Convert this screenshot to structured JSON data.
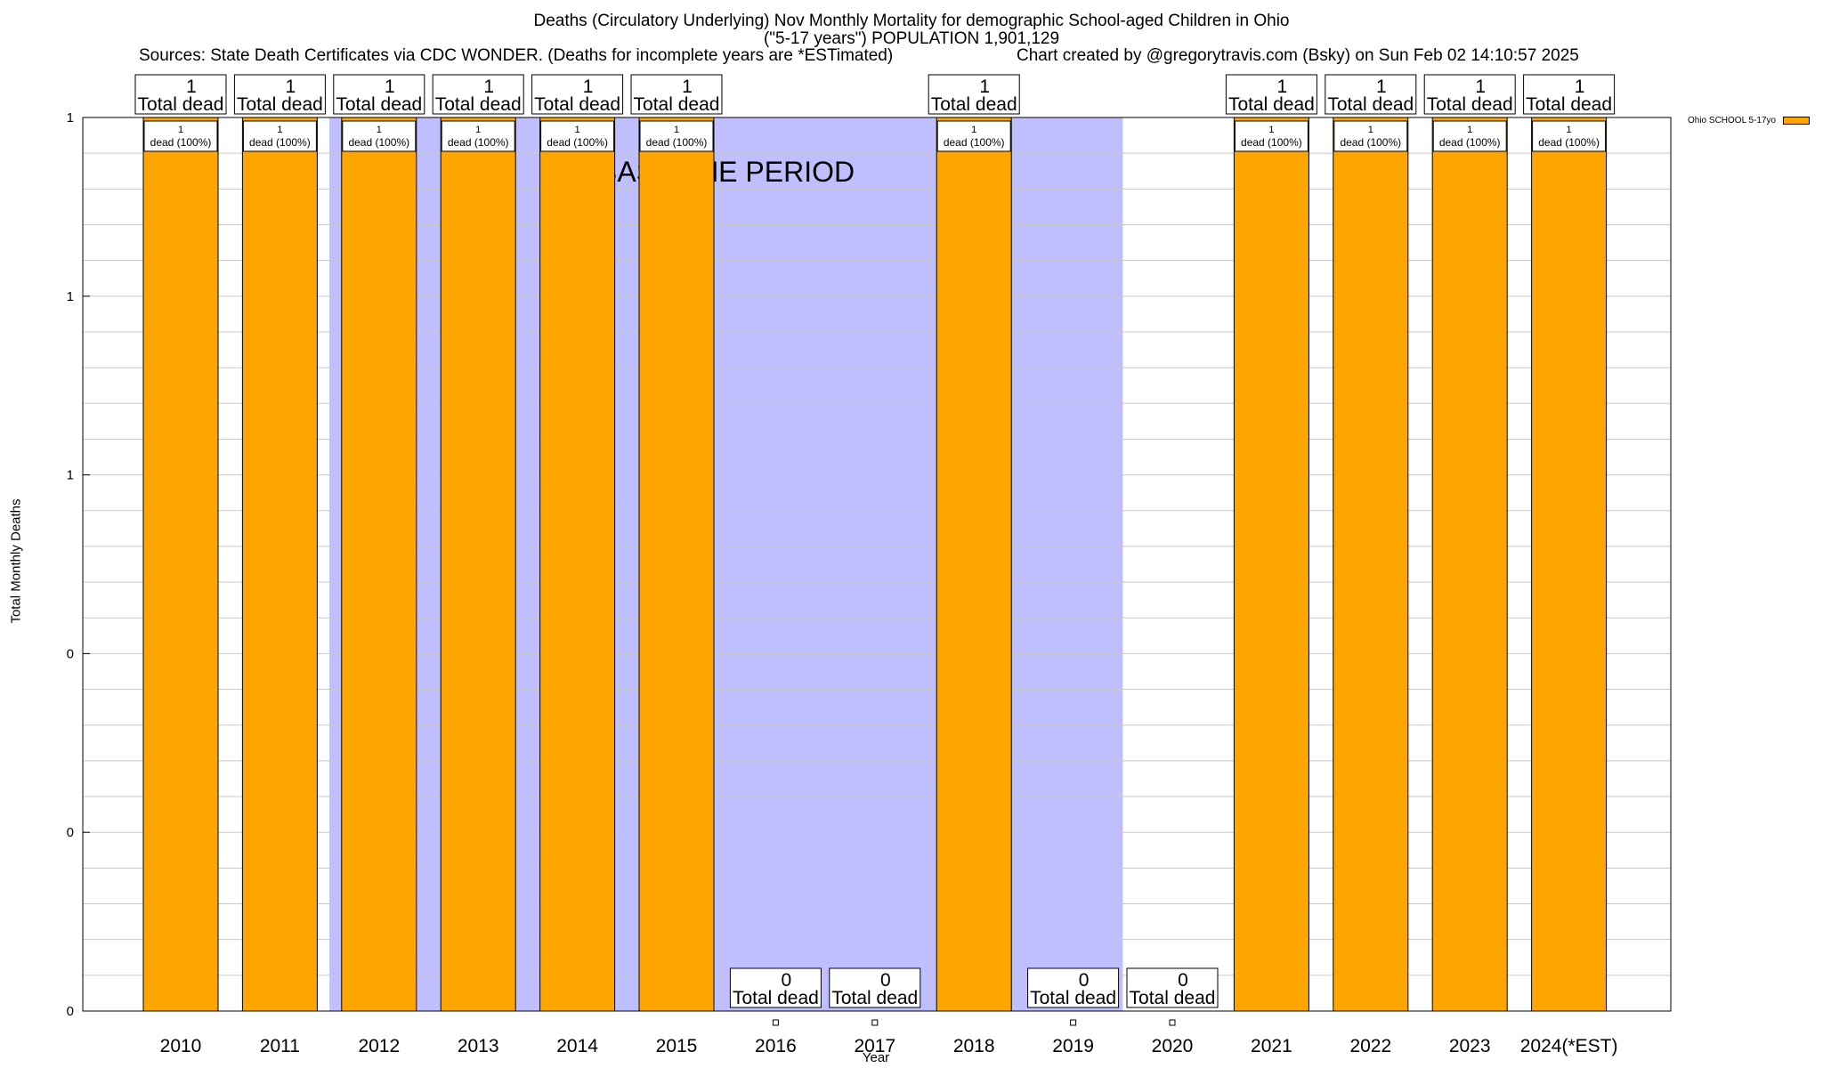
{
  "chart_data": {
    "type": "bar",
    "title_lines": [
      "Deaths (Circulatory Underlying) Nov Monthly Mortality for demographic School-aged Children in Ohio",
      "(\"5-17 years\") POPULATION 1,901,129"
    ],
    "sources": "Sources: State Death Certificates via CDC WONDER. (Deaths for incomplete years are *ESTimated)",
    "credit": "Chart created by @gregorytravis.com (Bsky) on Sun Feb 02 14:10:57 2025",
    "xlabel": "Year",
    "ylabel": "Total Monthly Deaths",
    "categories": [
      "2010",
      "2011",
      "2012",
      "2013",
      "2014",
      "2015",
      "2016",
      "2017",
      "2018",
      "2019",
      "2020",
      "2021",
      "2022",
      "2023",
      "2024(*EST)"
    ],
    "values": [
      1,
      1,
      1,
      1,
      1,
      1,
      0,
      0,
      1,
      0,
      0,
      1,
      1,
      1,
      1
    ],
    "total_labels": [
      "Total dead",
      "Total dead",
      "Total dead",
      "Total dead",
      "Total dead",
      "Total dead",
      "Total dead",
      "Total dead",
      "Total dead",
      "Total dead",
      "Total dead",
      "Total dead",
      "Total dead",
      "Total dead",
      "Total dead"
    ],
    "inner_labels": [
      "1\ndead (100%)",
      "1\ndead (100%)",
      "1\ndead (100%)",
      "1\ndead (100%)",
      "1\ndead (100%)",
      "1\ndead (100%)",
      "",
      "",
      "1\ndead (100%)",
      "",
      "",
      "1\ndead (100%)",
      "1\ndead (100%)",
      "1\ndead (100%)",
      "1\ndead (100%)"
    ],
    "ylim": [
      0,
      1
    ],
    "yticks": [
      0,
      0.2,
      0.4,
      0.6,
      0.8,
      1.0
    ],
    "ytick_labels": [
      "0",
      "0",
      "0",
      "1",
      "1",
      "1"
    ],
    "grid": true,
    "baseline_period": {
      "label": "BASELINE PERIOD",
      "from": "2012",
      "to": "2019"
    },
    "legend": {
      "label": "Ohio SCHOOL 5-17yo",
      "position": "top-right"
    },
    "colors": {
      "bar": "#FFA500",
      "baseline": "#BFBFFF"
    }
  }
}
